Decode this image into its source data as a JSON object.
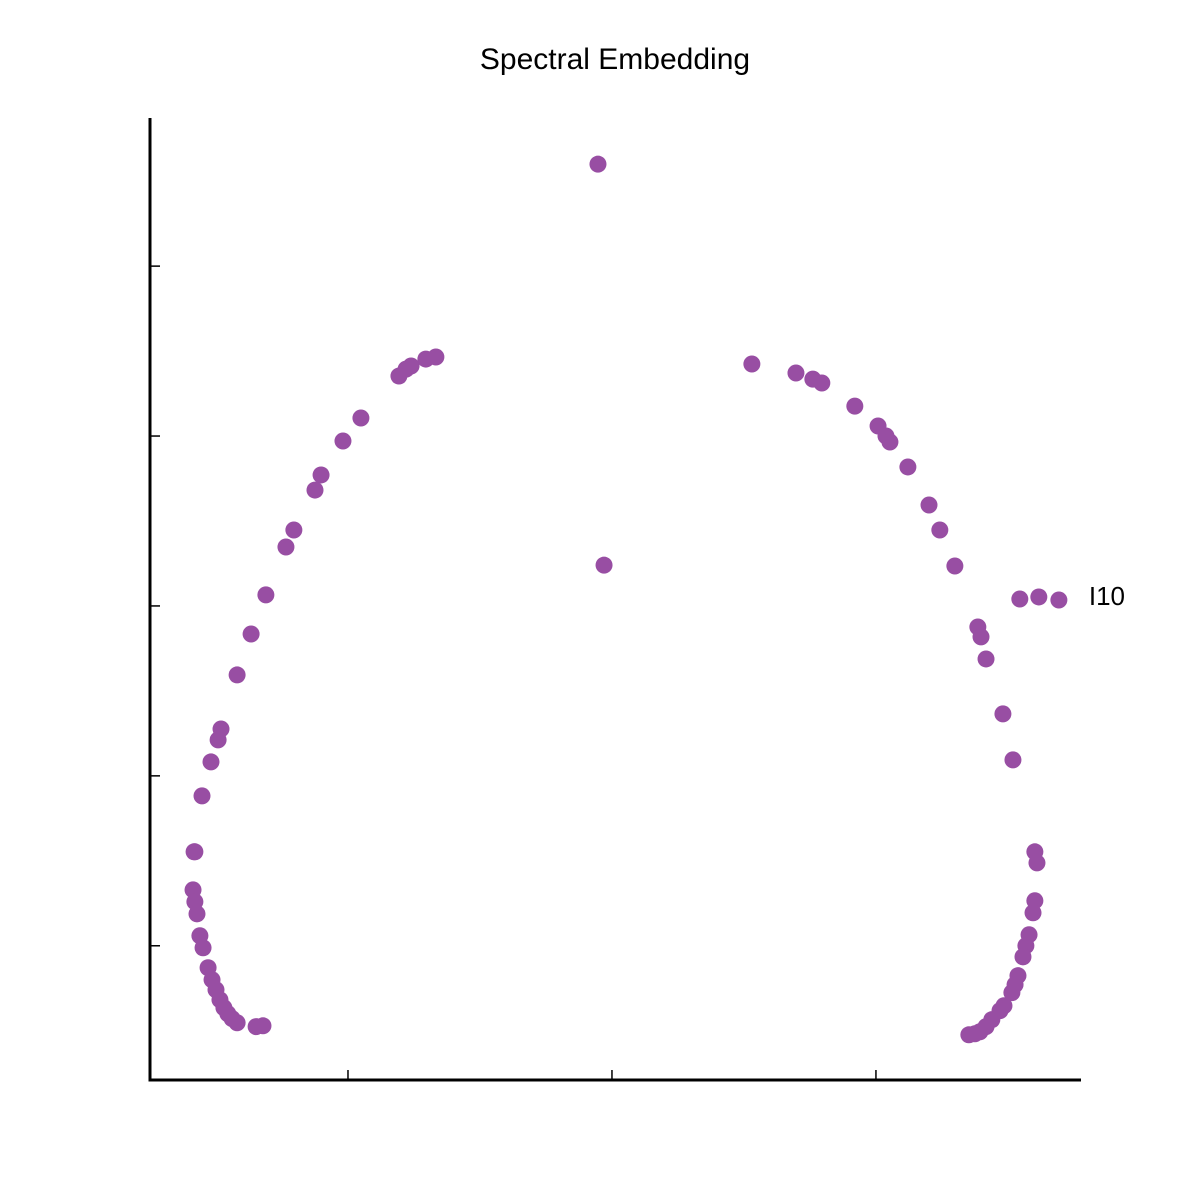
{
  "chart_data": {
    "type": "scatter",
    "title": "Spectral Embedding",
    "color": "#984ea3",
    "xlim": [
      -0.175,
      0.1773
    ],
    "ylim": [
      -0.279,
      0.286
    ],
    "xticks": [
      -0.1,
      0,
      0.1
    ],
    "yticks": [
      -0.2,
      -0.1,
      0,
      0.1,
      0.2
    ],
    "x": [
      -0.0053,
      -0.003,
      -0.0667,
      -0.0705,
      -0.0761,
      -0.078,
      -0.0807,
      -0.0951,
      -0.1019,
      -0.1102,
      -0.1125,
      -0.1205,
      -0.1235,
      -0.1311,
      -0.1367,
      -0.142,
      -0.1481,
      -0.1492,
      -0.1519,
      -0.1553,
      -0.1583,
      -0.158,
      -0.1587,
      -0.158,
      -0.1572,
      -0.1561,
      -0.1549,
      -0.153,
      -0.1515,
      -0.15,
      -0.1485,
      -0.147,
      -0.1455,
      -0.1439,
      -0.142,
      -0.1348,
      -0.1322,
      0.053,
      0.0697,
      0.0761,
      0.0795,
      0.092,
      0.1008,
      0.1038,
      0.1053,
      0.1121,
      0.1201,
      0.1242,
      0.1299,
      0.1545,
      0.1617,
      0.1693,
      0.1386,
      0.1398,
      0.1417,
      0.1481,
      0.1519,
      0.1602,
      0.161,
      0.1602,
      0.1595,
      0.158,
      0.1568,
      0.1557,
      0.1538,
      0.1527,
      0.1515,
      0.1485,
      0.147,
      0.1439,
      0.1417,
      0.1394,
      0.1375,
      0.1352
    ],
    "y": [
      0.26,
      0.024,
      0.1465,
      0.1453,
      0.1412,
      0.1394,
      0.1353,
      0.1106,
      0.0971,
      0.0771,
      0.0682,
      0.0447,
      0.0347,
      0.0065,
      -0.0165,
      -0.0406,
      -0.0724,
      -0.0788,
      -0.0918,
      -0.1118,
      -0.1447,
      -0.1447,
      -0.1671,
      -0.1741,
      -0.1812,
      -0.1941,
      -0.2012,
      -0.2129,
      -0.22,
      -0.2259,
      -0.2318,
      -0.2365,
      -0.24,
      -0.2429,
      -0.2453,
      -0.2476,
      -0.2471,
      0.1424,
      0.1371,
      0.1335,
      0.1312,
      0.1176,
      0.1059,
      0.1,
      0.0965,
      0.0818,
      0.0594,
      0.0447,
      0.0235,
      0.0041,
      0.0053,
      0.0035,
      -0.0124,
      -0.0182,
      -0.0312,
      -0.0635,
      -0.0906,
      -0.1447,
      -0.1512,
      -0.1735,
      -0.1806,
      -0.1935,
      -0.2,
      -0.2065,
      -0.2176,
      -0.2229,
      -0.2276,
      -0.2353,
      -0.2382,
      -0.2435,
      -0.2476,
      -0.2506,
      -0.2518,
      -0.2524
    ],
    "labels": [
      null,
      null,
      null,
      null,
      null,
      null,
      null,
      null,
      null,
      null,
      null,
      null,
      null,
      null,
      null,
      null,
      null,
      null,
      null,
      null,
      null,
      null,
      null,
      null,
      null,
      null,
      null,
      null,
      null,
      null,
      null,
      null,
      null,
      null,
      null,
      null,
      null,
      null,
      null,
      null,
      null,
      null,
      null,
      null,
      null,
      null,
      null,
      null,
      null,
      null,
      null,
      "I10",
      null,
      null,
      null,
      null,
      null,
      null,
      null,
      null,
      null,
      null,
      null,
      null,
      null,
      null,
      null,
      null,
      null,
      null,
      null,
      null,
      null,
      null
    ]
  }
}
